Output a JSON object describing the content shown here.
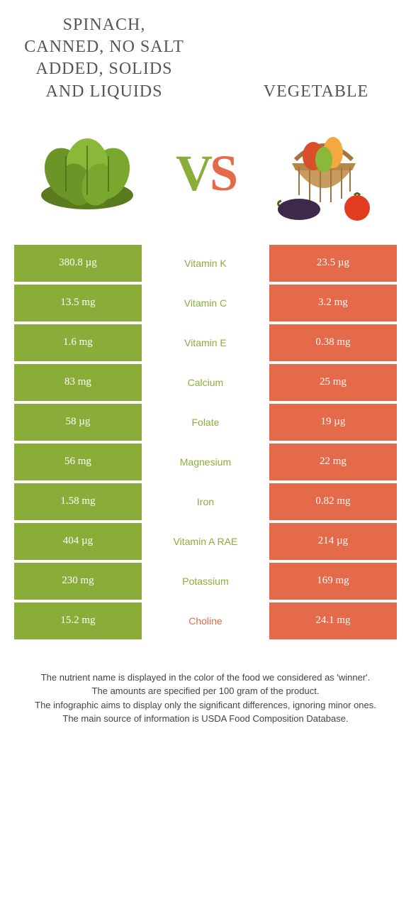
{
  "colors": {
    "green": "#8aad3a",
    "orange": "#e46a4a",
    "text": "#555555"
  },
  "header": {
    "left_title": "SPINACH, CANNED, NO SALT ADDED, SOLIDS AND LIQUIDS",
    "right_title": "VEGETABLE",
    "vs_v": "V",
    "vs_s": "S"
  },
  "rows": [
    {
      "left": "380.8 µg",
      "mid": "Vitamin K",
      "right": "23.5 µg",
      "winner": "green"
    },
    {
      "left": "13.5 mg",
      "mid": "Vitamin C",
      "right": "3.2 mg",
      "winner": "green"
    },
    {
      "left": "1.6 mg",
      "mid": "Vitamin E",
      "right": "0.38 mg",
      "winner": "green"
    },
    {
      "left": "83 mg",
      "mid": "Calcium",
      "right": "25 mg",
      "winner": "green"
    },
    {
      "left": "58 µg",
      "mid": "Folate",
      "right": "19 µg",
      "winner": "green"
    },
    {
      "left": "56 mg",
      "mid": "Magnesium",
      "right": "22 mg",
      "winner": "green"
    },
    {
      "left": "1.58 mg",
      "mid": "Iron",
      "right": "0.82 mg",
      "winner": "green"
    },
    {
      "left": "404 µg",
      "mid": "Vitamin A RAE",
      "right": "214 µg",
      "winner": "green"
    },
    {
      "left": "230 mg",
      "mid": "Potassium",
      "right": "169 mg",
      "winner": "green"
    },
    {
      "left": "15.2 mg",
      "mid": "Choline",
      "right": "24.1 mg",
      "winner": "orange"
    }
  ],
  "footer": {
    "line1": "The nutrient name is displayed in the color of the food we considered as 'winner'.",
    "line2": "The amounts are specified per 100 gram of the product.",
    "line3": "The infographic aims to display only the significant differences, ignoring minor ones.",
    "line4": "The main source of information is USDA Food Composition Database."
  }
}
